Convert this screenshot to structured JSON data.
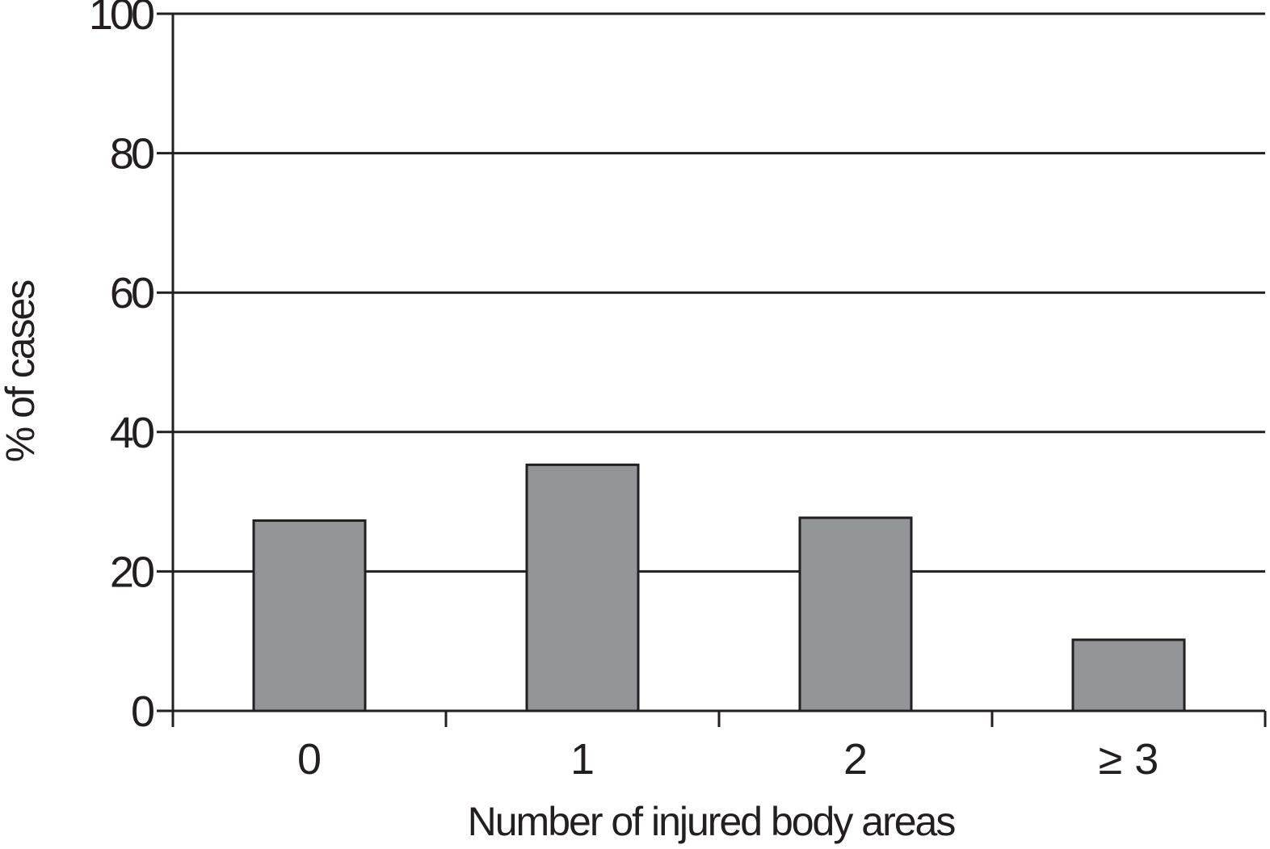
{
  "chart_data": {
    "type": "bar",
    "title": "",
    "xlabel": "Number of injured body areas",
    "ylabel": "% of cases",
    "categories": [
      "0",
      "1",
      "2",
      "≥ 3"
    ],
    "values": [
      27.3,
      35.3,
      27.7,
      10.2
    ],
    "ylim": [
      0,
      100
    ],
    "yticks": [
      0,
      20,
      40,
      60,
      80,
      100
    ],
    "ytick_labels": [
      "0",
      "20",
      "40",
      "60",
      "80",
      "100"
    ],
    "grid": true,
    "legend": "none",
    "bar_color": "#939598",
    "line_color": "#231f20"
  }
}
